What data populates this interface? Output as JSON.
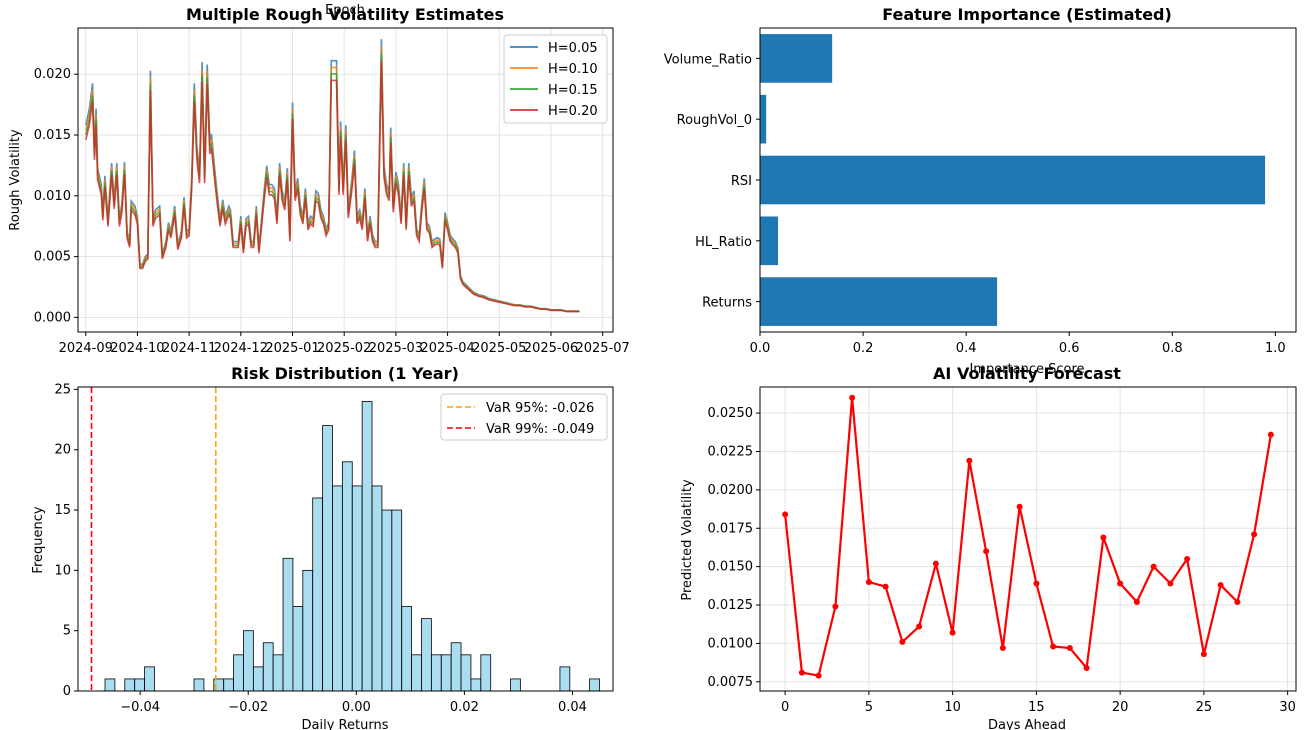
{
  "colors": {
    "h005": "#1f77b4",
    "h010": "#ff7f0e",
    "h015": "#2ca02c",
    "h020": "#d62728",
    "bar": "#1f77b4",
    "hist": "#87ceeb",
    "var95": "#ffa500",
    "var99": "#ff0000",
    "forecast": "#ff0000"
  },
  "chart_data": [
    {
      "type": "line",
      "title": "Multiple Rough Volatility Estimates",
      "overlay_text": "Epoch",
      "xlabel": "",
      "ylabel": "Rough Volatility",
      "x_ticks": [
        "2024-09",
        "2024-10",
        "2024-11",
        "2024-12",
        "2025-01",
        "2025-02",
        "2025-03",
        "2025-04",
        "2025-05",
        "2025-06",
        "2025-07"
      ],
      "x_range_months": [
        -0.15,
        10.2
      ],
      "y_ticks": [
        "0.000",
        "0.005",
        "0.010",
        "0.015",
        "0.020"
      ],
      "ylim": [
        -0.0012,
        0.0238
      ],
      "grid": true,
      "legend_position": "top-right",
      "base_series": [
        [
          0.0,
          0.0152
        ],
        [
          0.07,
          0.0165
        ],
        [
          0.13,
          0.0185
        ],
        [
          0.17,
          0.0135
        ],
        [
          0.2,
          0.0165
        ],
        [
          0.23,
          0.0118
        ],
        [
          0.3,
          0.0105
        ],
        [
          0.33,
          0.0083
        ],
        [
          0.37,
          0.0112
        ],
        [
          0.43,
          0.0078
        ],
        [
          0.5,
          0.0122
        ],
        [
          0.55,
          0.0093
        ],
        [
          0.6,
          0.0122
        ],
        [
          0.65,
          0.0078
        ],
        [
          0.7,
          0.009
        ],
        [
          0.75,
          0.0123
        ],
        [
          0.8,
          0.0068
        ],
        [
          0.85,
          0.006
        ],
        [
          0.88,
          0.0092
        ],
        [
          0.95,
          0.0088
        ],
        [
          1.0,
          0.008
        ],
        [
          1.05,
          0.0042
        ],
        [
          1.1,
          0.0042
        ],
        [
          1.15,
          0.0048
        ],
        [
          1.2,
          0.005
        ],
        [
          1.25,
          0.0195
        ],
        [
          1.3,
          0.0078
        ],
        [
          1.35,
          0.0085
        ],
        [
          1.43,
          0.0088
        ],
        [
          1.48,
          0.005
        ],
        [
          1.55,
          0.006
        ],
        [
          1.6,
          0.0075
        ],
        [
          1.65,
          0.0068
        ],
        [
          1.72,
          0.0088
        ],
        [
          1.78,
          0.0058
        ],
        [
          1.85,
          0.0068
        ],
        [
          1.9,
          0.0095
        ],
        [
          1.95,
          0.0068
        ],
        [
          2.0,
          0.007
        ],
        [
          2.05,
          0.011
        ],
        [
          2.1,
          0.0185
        ],
        [
          2.15,
          0.0135
        ],
        [
          2.2,
          0.0115
        ],
        [
          2.25,
          0.0202
        ],
        [
          2.3,
          0.0115
        ],
        [
          2.35,
          0.02
        ],
        [
          2.4,
          0.014
        ],
        [
          2.43,
          0.0145
        ],
        [
          2.5,
          0.0115
        ],
        [
          2.55,
          0.0095
        ],
        [
          2.6,
          0.0078
        ],
        [
          2.65,
          0.0093
        ],
        [
          2.7,
          0.008
        ],
        [
          2.77,
          0.0088
        ],
        [
          2.8,
          0.0085
        ],
        [
          2.85,
          0.006
        ],
        [
          2.9,
          0.006
        ],
        [
          2.95,
          0.006
        ],
        [
          3.0,
          0.008
        ],
        [
          3.05,
          0.0055
        ],
        [
          3.1,
          0.0078
        ],
        [
          3.15,
          0.008
        ],
        [
          3.2,
          0.006
        ],
        [
          3.25,
          0.006
        ],
        [
          3.3,
          0.0088
        ],
        [
          3.35,
          0.0055
        ],
        [
          3.45,
          0.01
        ],
        [
          3.5,
          0.012
        ],
        [
          3.55,
          0.0105
        ],
        [
          3.6,
          0.0105
        ],
        [
          3.65,
          0.0102
        ],
        [
          3.7,
          0.008
        ],
        [
          3.75,
          0.0122
        ],
        [
          3.8,
          0.01
        ],
        [
          3.85,
          0.0092
        ],
        [
          3.9,
          0.0118
        ],
        [
          3.95,
          0.0065
        ],
        [
          4.0,
          0.017
        ],
        [
          4.05,
          0.01
        ],
        [
          4.1,
          0.011
        ],
        [
          4.15,
          0.0088
        ],
        [
          4.2,
          0.008
        ],
        [
          4.25,
          0.0102
        ],
        [
          4.3,
          0.0075
        ],
        [
          4.35,
          0.008
        ],
        [
          4.4,
          0.0078
        ],
        [
          4.45,
          0.01
        ],
        [
          4.5,
          0.0098
        ],
        [
          4.55,
          0.0085
        ],
        [
          4.6,
          0.008
        ],
        [
          4.65,
          0.007
        ],
        [
          4.7,
          0.0075
        ],
        [
          4.75,
          0.0203
        ],
        [
          4.8,
          0.0203
        ],
        [
          4.85,
          0.0203
        ],
        [
          4.9,
          0.0105
        ],
        [
          4.93,
          0.0155
        ],
        [
          4.98,
          0.0105
        ],
        [
          5.03,
          0.0152
        ],
        [
          5.08,
          0.0085
        ],
        [
          5.15,
          0.011
        ],
        [
          5.2,
          0.0132
        ],
        [
          5.25,
          0.008
        ],
        [
          5.3,
          0.0085
        ],
        [
          5.35,
          0.0075
        ],
        [
          5.4,
          0.0102
        ],
        [
          5.45,
          0.0065
        ],
        [
          5.5,
          0.008
        ],
        [
          5.55,
          0.0065
        ],
        [
          5.6,
          0.006
        ],
        [
          5.65,
          0.006
        ],
        [
          5.72,
          0.022
        ],
        [
          5.77,
          0.012
        ],
        [
          5.82,
          0.0105
        ],
        [
          5.87,
          0.01
        ],
        [
          5.9,
          0.015
        ],
        [
          5.95,
          0.009
        ],
        [
          6.0,
          0.0115
        ],
        [
          6.05,
          0.0105
        ],
        [
          6.1,
          0.008
        ],
        [
          6.15,
          0.0122
        ],
        [
          6.2,
          0.0075
        ],
        [
          6.25,
          0.0122
        ],
        [
          6.3,
          0.0095
        ],
        [
          6.35,
          0.01
        ],
        [
          6.4,
          0.007
        ],
        [
          6.45,
          0.0065
        ],
        [
          6.5,
          0.009
        ],
        [
          6.55,
          0.011
        ],
        [
          6.6,
          0.0075
        ],
        [
          6.65,
          0.0072
        ],
        [
          6.7,
          0.006
        ],
        [
          6.75,
          0.0062
        ],
        [
          6.8,
          0.0063
        ],
        [
          6.85,
          0.0062
        ],
        [
          6.9,
          0.0042
        ],
        [
          6.95,
          0.0083
        ],
        [
          7.0,
          0.0075
        ],
        [
          7.05,
          0.0065
        ],
        [
          7.1,
          0.0062
        ],
        [
          7.15,
          0.006
        ],
        [
          7.2,
          0.0055
        ],
        [
          7.25,
          0.0033
        ],
        [
          7.3,
          0.0028
        ],
        [
          7.35,
          0.0026
        ],
        [
          7.4,
          0.0024
        ],
        [
          7.5,
          0.002
        ],
        [
          7.6,
          0.0018
        ],
        [
          7.7,
          0.0017
        ],
        [
          7.8,
          0.0015
        ],
        [
          7.9,
          0.0014
        ],
        [
          8.0,
          0.0013
        ],
        [
          8.1,
          0.0012
        ],
        [
          8.2,
          0.0011
        ],
        [
          8.3,
          0.001
        ],
        [
          8.4,
          0.001
        ],
        [
          8.5,
          0.0009
        ],
        [
          8.6,
          0.0009
        ],
        [
          8.7,
          0.0008
        ],
        [
          8.8,
          0.0007
        ],
        [
          8.9,
          0.0007
        ],
        [
          9.0,
          0.0006
        ],
        [
          9.1,
          0.0006
        ],
        [
          9.2,
          0.0006
        ],
        [
          9.3,
          0.0005
        ],
        [
          9.45,
          0.0005
        ],
        [
          9.55,
          0.0005
        ]
      ],
      "series": [
        {
          "name": "H=0.05",
          "color_key": "h005",
          "scale": 1.04
        },
        {
          "name": "H=0.10",
          "color_key": "h010",
          "scale": 1.013
        },
        {
          "name": "H=0.15",
          "color_key": "h015",
          "scale": 0.987
        },
        {
          "name": "H=0.20",
          "color_key": "h020",
          "scale": 0.96
        }
      ]
    },
    {
      "type": "bar",
      "orientation": "horizontal",
      "title": "Feature Importance (Estimated)",
      "xlabel": "Importance Score",
      "ylabel": "",
      "categories": [
        "Returns",
        "HL_Ratio",
        "RSI",
        "RoughVol_0",
        "Volume_Ratio"
      ],
      "values": [
        0.46,
        0.035,
        0.98,
        0.012,
        0.14
      ],
      "x_ticks": [
        "0.0",
        "0.2",
        "0.4",
        "0.6",
        "0.8",
        "1.0"
      ],
      "xlim": [
        0,
        1.04
      ],
      "grid": false
    },
    {
      "type": "histogram",
      "title": "Risk Distribution (1 Year)",
      "xlabel": "Daily Returns",
      "ylabel": "Frequency",
      "x_ticks": [
        "−0.04",
        "−0.02",
        "0.00",
        "0.02",
        "0.04"
      ],
      "y_ticks": [
        "0",
        "5",
        "10",
        "15",
        "20",
        "25"
      ],
      "xlim": [
        -0.0515,
        0.0475
      ],
      "ylim": [
        0,
        25.2
      ],
      "bin_start": -0.0465,
      "bin_width": 0.00183,
      "counts": [
        1,
        0,
        1,
        1,
        2,
        0,
        0,
        0,
        0,
        1,
        0,
        1,
        1,
        3,
        5,
        2,
        4,
        3,
        11,
        7,
        10,
        16,
        22,
        17,
        19,
        17,
        24,
        17,
        15,
        15,
        7,
        3,
        6,
        3,
        3,
        4,
        3,
        1,
        3,
        0,
        0,
        1,
        0,
        0,
        0,
        0,
        2,
        0,
        0,
        1
      ],
      "grid": false,
      "legend_position": "top-right",
      "lines": [
        {
          "name": "VaR 95%: -0.026",
          "x": -0.026,
          "color_key": "var95"
        },
        {
          "name": "VaR 99%: -0.049",
          "x": -0.049,
          "color_key": "var99"
        }
      ]
    },
    {
      "type": "line",
      "title": "AI Volatility Forecast",
      "xlabel": "Days Ahead",
      "ylabel": "Predicted Volatility",
      "x_ticks": [
        "0",
        "5",
        "10",
        "15",
        "20",
        "25",
        "30"
      ],
      "y_ticks": [
        "0.0075",
        "0.0100",
        "0.0125",
        "0.0150",
        "0.0175",
        "0.0200",
        "0.0225",
        "0.0250"
      ],
      "xlim": [
        -1.5,
        30.5
      ],
      "ylim": [
        0.0069,
        0.0267
      ],
      "grid": true,
      "x": [
        0,
        1,
        2,
        3,
        4,
        5,
        6,
        7,
        8,
        9,
        10,
        11,
        12,
        13,
        14,
        15,
        16,
        17,
        18,
        19,
        20,
        21,
        22,
        23,
        24,
        25,
        26,
        27,
        28,
        29
      ],
      "values": [
        0.0184,
        0.0081,
        0.0079,
        0.0124,
        0.026,
        0.014,
        0.0137,
        0.0101,
        0.0111,
        0.0152,
        0.0107,
        0.0219,
        0.016,
        0.0097,
        0.0189,
        0.0139,
        0.0098,
        0.0097,
        0.0084,
        0.0169,
        0.0139,
        0.0127,
        0.015,
        0.0139,
        0.0155,
        0.0093,
        0.0138,
        0.0127,
        0.0171,
        0.0236
      ]
    }
  ]
}
